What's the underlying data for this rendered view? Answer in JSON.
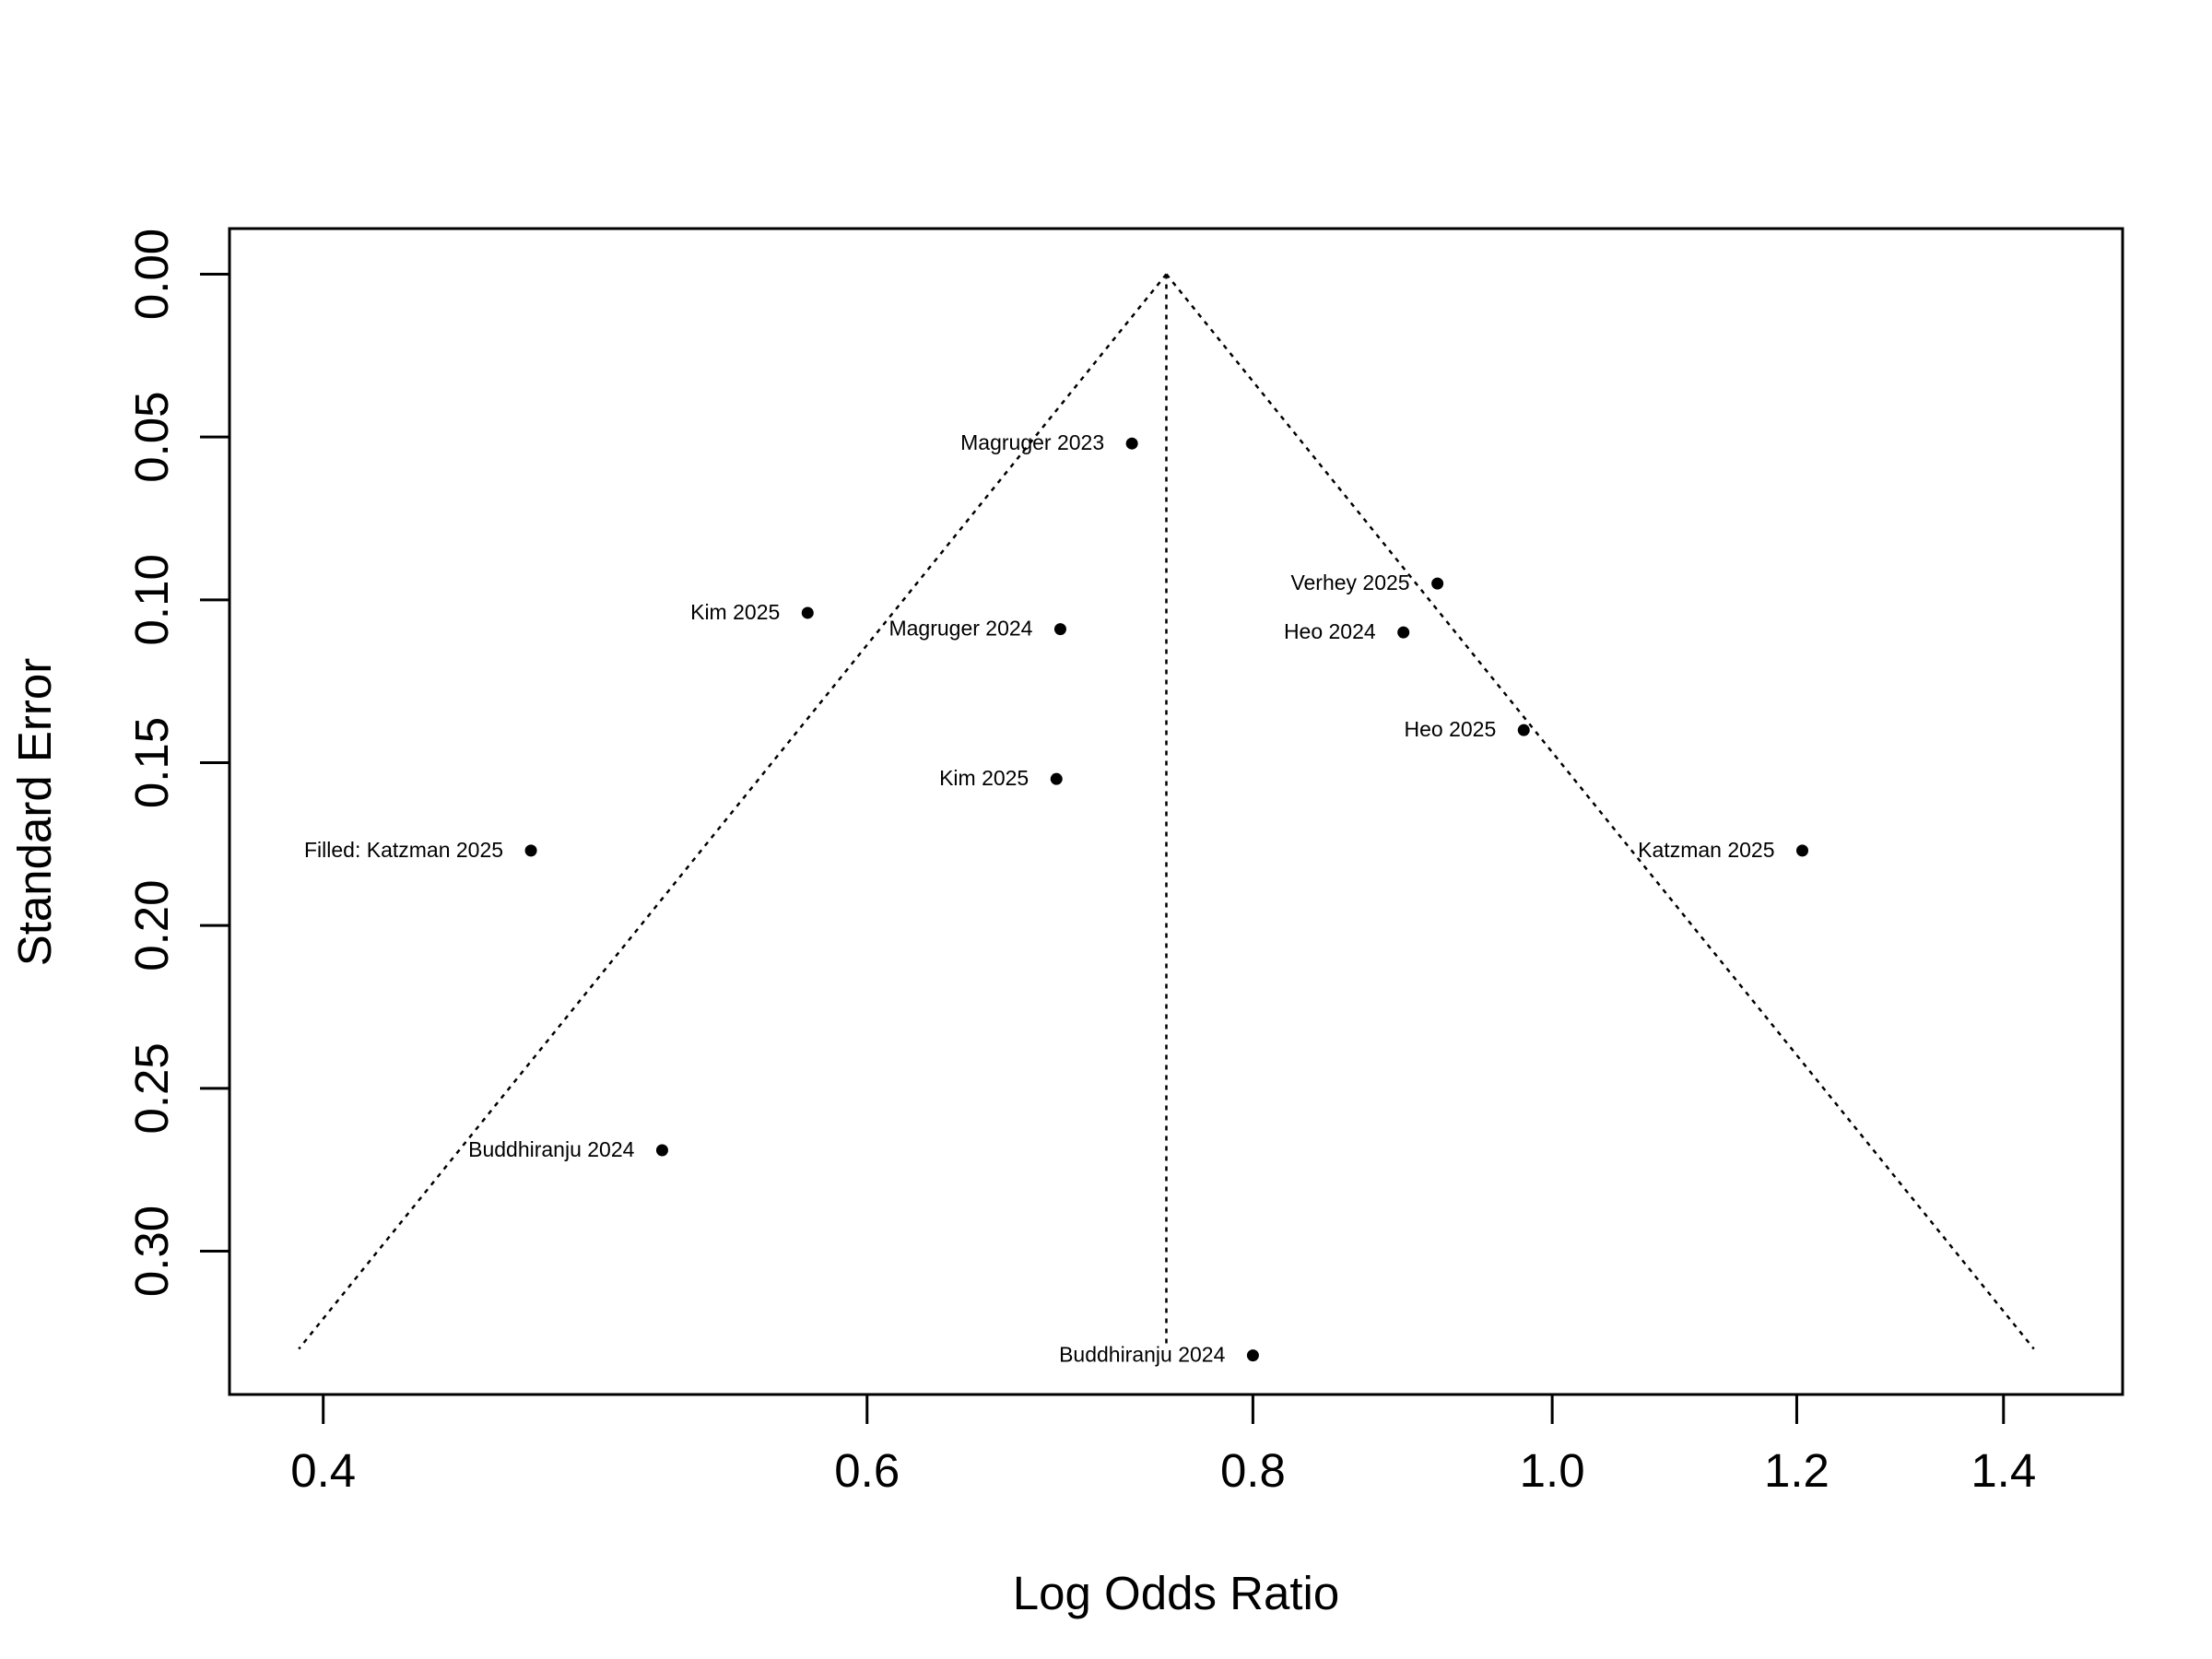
{
  "chart_data": {
    "type": "scatter",
    "xlabel": "Log Odds Ratio",
    "ylabel": "Standard Error",
    "x_scale": "log",
    "xlim": [
      0.373,
      1.53
    ],
    "ylim": [
      0.344,
      -0.014
    ],
    "y_reversed": true,
    "x_ticks": [
      0.4,
      0.6,
      0.8,
      1.0,
      1.2,
      1.4
    ],
    "x_tick_labels": [
      "0.4",
      "0.6",
      "0.8",
      "1.0",
      "1.2",
      "1.4"
    ],
    "y_ticks": [
      0.0,
      0.05,
      0.1,
      0.15,
      0.2,
      0.25,
      0.3
    ],
    "y_tick_labels": [
      "0.00",
      "0.05",
      "0.10",
      "0.15",
      "0.20",
      "0.25",
      "0.30"
    ],
    "funnel": {
      "center": 0.75,
      "se_max": 0.33,
      "z": 1.96,
      "line_style": "dotted"
    },
    "grid": false,
    "points": [
      {
        "label": "Magruger 2023",
        "x": 0.731,
        "y": 0.052
      },
      {
        "label": "Kim 2025",
        "x": 0.574,
        "y": 0.104
      },
      {
        "label": "Magruger 2024",
        "x": 0.693,
        "y": 0.109
      },
      {
        "label": "Verhey 2025",
        "x": 0.918,
        "y": 0.095
      },
      {
        "label": "Heo 2024",
        "x": 0.895,
        "y": 0.11
      },
      {
        "label": "Heo 2025",
        "x": 0.979,
        "y": 0.14
      },
      {
        "label": "Kim 2025",
        "x": 0.691,
        "y": 0.155
      },
      {
        "label": "Filled: Katzman 2025",
        "x": 0.467,
        "y": 0.177
      },
      {
        "label": "Katzman 2025",
        "x": 1.205,
        "y": 0.177
      },
      {
        "label": "Buddhiranju 2024",
        "x": 0.515,
        "y": 0.269
      },
      {
        "label": "Buddhiranju 2024",
        "x": 0.8,
        "y": 0.332
      }
    ]
  }
}
